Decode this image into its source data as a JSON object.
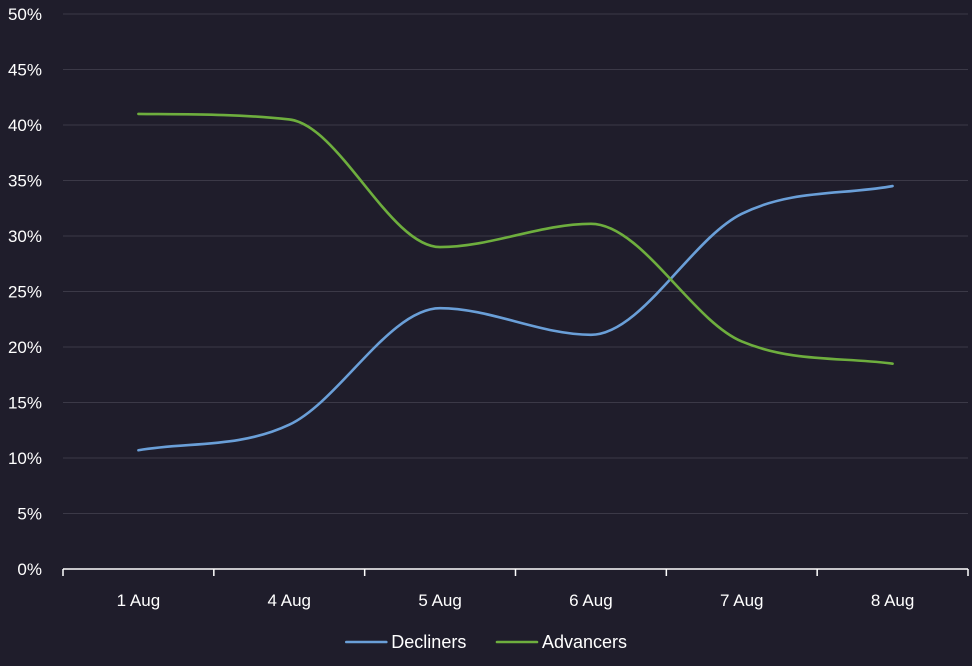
{
  "chart_data": {
    "type": "line",
    "title": "",
    "xlabel": "",
    "ylabel": "",
    "categories": [
      "1 Aug",
      "4 Aug",
      "5 Aug",
      "6 Aug",
      "7 Aug",
      "8 Aug"
    ],
    "y_ticks": [
      "0%",
      "5%",
      "10%",
      "15%",
      "20%",
      "25%",
      "30%",
      "35%",
      "40%",
      "45%",
      "50%"
    ],
    "ylim": [
      0,
      50
    ],
    "y_unit": "%",
    "grid": true,
    "legend": "bottom",
    "series": [
      {
        "name": "Decliners",
        "color": "#6a9fd8",
        "values": [
          10.7,
          13.0,
          23.5,
          21.1,
          32.0,
          34.5
        ]
      },
      {
        "name": "Advancers",
        "color": "#6eae3e",
        "values": [
          41.0,
          40.5,
          29.0,
          31.1,
          20.5,
          18.5
        ]
      }
    ],
    "colors": {
      "background": "#1f1d2b",
      "gridline": "#3b3947",
      "axis": "#ffffff",
      "text": "#ffffff"
    }
  }
}
